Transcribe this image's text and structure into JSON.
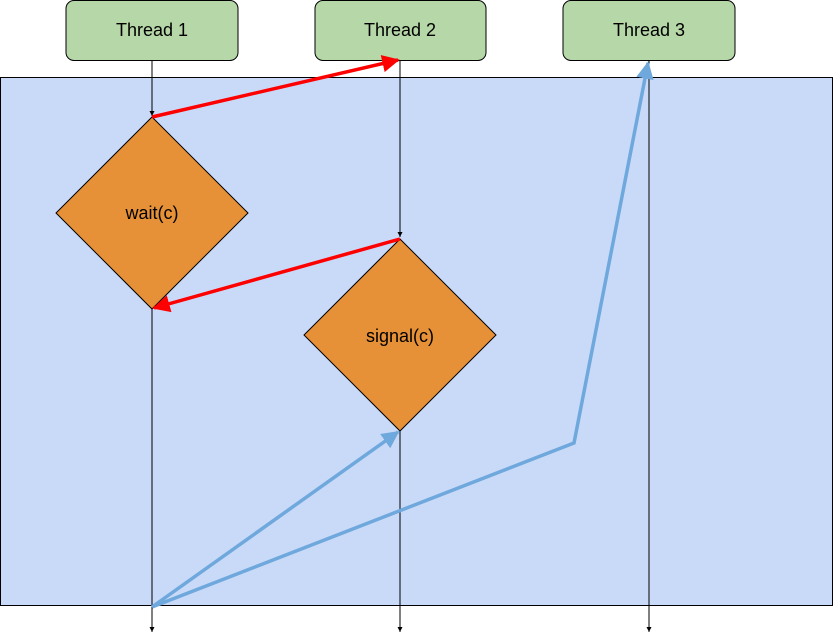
{
  "threads": [
    {
      "label": "Thread 1"
    },
    {
      "label": "Thread 2"
    },
    {
      "label": "Thread 3"
    }
  ],
  "operations": [
    {
      "label": "wait(c)",
      "thread": "Thread 1"
    },
    {
      "label": "signal(c)",
      "thread": "Thread 2"
    }
  ],
  "colors": {
    "monitor_region": "#c9daf8",
    "thread_box": "#b6d7a8",
    "operation": "#e69138",
    "red_arrow": "#ff0000",
    "blue_arrow": "#6fa8dc"
  }
}
